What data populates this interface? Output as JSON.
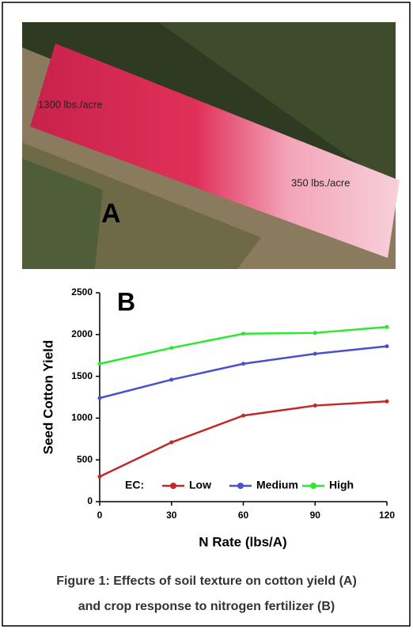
{
  "photo": {
    "label": "A",
    "annotations": [
      "1300 lbs./acre",
      "350 lbs./acre"
    ]
  },
  "chart_data": {
    "type": "line",
    "panel_label": "B",
    "x_label": "N Rate (lbs/A)",
    "y_label": "Seed Cotton Yield",
    "legend_title": "EC:",
    "x": [
      0,
      30,
      60,
      90,
      120
    ],
    "series": [
      {
        "name": "Low",
        "color": "#c0282a",
        "values": [
          300,
          710,
          1030,
          1150,
          1200
        ]
      },
      {
        "name": "Medium",
        "color": "#4a4fd0",
        "values": [
          1240,
          1460,
          1650,
          1770,
          1860
        ]
      },
      {
        "name": "High",
        "color": "#2ee82e",
        "values": [
          1650,
          1840,
          2010,
          2020,
          2090
        ]
      }
    ],
    "xlim": [
      0,
      120
    ],
    "xticks": [
      0,
      30,
      60,
      90,
      120
    ],
    "ylim": [
      0,
      2500
    ],
    "yticks": [
      0,
      500,
      1000,
      1500,
      2000,
      2500
    ]
  },
  "caption": [
    "Figure 1: Effects of soil texture on cotton yield (A)",
    "and crop response to nitrogen fertilizer (B)"
  ]
}
